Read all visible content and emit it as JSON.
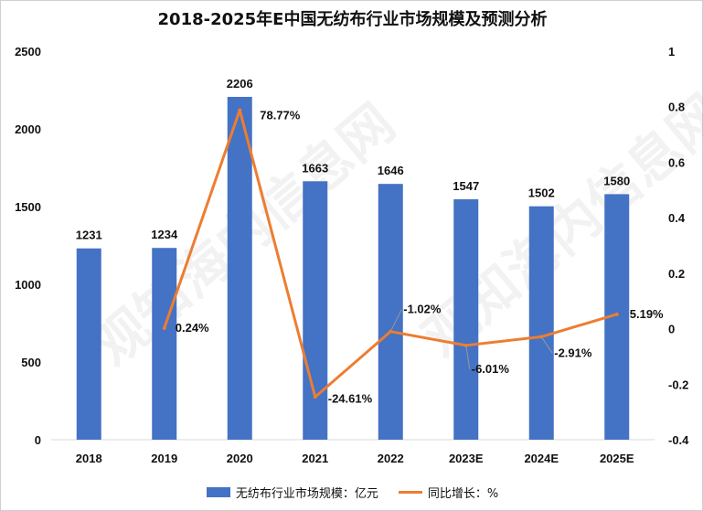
{
  "colors": {
    "bar": "#4472C4",
    "line": "#ED7D31",
    "axis": "#d9d9d9",
    "text": "#111111"
  },
  "watermark": "观知海内信息网",
  "chart_data": {
    "type": "bar",
    "title": "2018-2025年E中国无纺布行业市场规模及预测分析",
    "categories": [
      "2018",
      "2019",
      "2020",
      "2021",
      "2022",
      "2023E",
      "2024E",
      "2025E"
    ],
    "series": [
      {
        "name": "无纺布行业市场规模：亿元",
        "type": "bar",
        "axis": "left",
        "values": [
          1231,
          1234,
          2206,
          1663,
          1646,
          1547,
          1502,
          1580
        ]
      },
      {
        "name": "同比增长：%",
        "type": "line",
        "axis": "right",
        "values": [
          null,
          0.0024,
          0.7877,
          -0.2461,
          -0.0102,
          -0.0601,
          -0.0291,
          0.0519
        ],
        "labels": [
          "",
          "0.24%",
          "78.77%",
          "-24.61%",
          "-1.02%",
          "-6.01%",
          "-2.91%",
          "5.19%"
        ]
      }
    ],
    "y_left": {
      "min": 0,
      "max": 2500,
      "ticks": [
        "0",
        "500",
        "1000",
        "1500",
        "2000",
        "2500"
      ]
    },
    "y_right": {
      "min": -0.4,
      "max": 1,
      "ticks": [
        "-0.4",
        "-0.2",
        "0",
        "0.2",
        "0.4",
        "0.6",
        "0.8",
        "1"
      ]
    },
    "grid": false,
    "legend": "bottom"
  }
}
